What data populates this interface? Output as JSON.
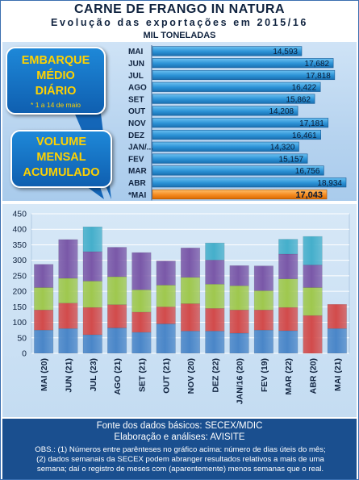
{
  "header": {
    "title": "CARNE DE FRANGO IN NATURA",
    "subtitle": "Evolução das exportações em 2015/16",
    "unit": "MIL TONELADAS"
  },
  "callouts": {
    "daily_line1": "EMBARQUE",
    "daily_line2": "MÉDIO",
    "daily_line3": "DIÁRIO",
    "daily_note": "* 1 a 14 de maio",
    "monthly_line1": "VOLUME",
    "monthly_line2": "MENSAL",
    "monthly_line3": "ACUMULADO"
  },
  "footer": {
    "source": "Fonte dos dados básicos: SECEX/MDIC",
    "analysis": "Elaboração e análises: AVISITE",
    "obs1": "OBS.: (1) Números entre parênteses no gráfico acima: número de dias úteis do mês;",
    "obs2": "(2) dados semanais da SECEX podem abranger resultados relativos a mais de uma",
    "obs3": "semana; daí o registro de meses com (aparentemente) menos semanas que o real."
  },
  "colors": {
    "daily_bar": "#2b92d6",
    "daily_bar_highlight": "#f58a1f",
    "week1": "#4a86c8",
    "week2": "#d24b4b",
    "week3": "#9fc84e",
    "week4": "#7a58a8",
    "week5": "#45afcb"
  },
  "chart_data": [
    {
      "type": "bar",
      "orientation": "horizontal",
      "title": "EMBARQUE MÉDIO DIÁRIO",
      "categories": [
        "MAI",
        "JUN",
        "JUL",
        "AGO",
        "SET",
        "OUT",
        "NOV",
        "DEZ",
        "JAN/...",
        "FEV",
        "MAR",
        "ABR",
        "*MAI"
      ],
      "values": [
        14593,
        17682,
        17818,
        16422,
        15862,
        14208,
        17181,
        16461,
        14320,
        15157,
        16756,
        18934,
        17043
      ],
      "labels": [
        "14,593",
        "17,682",
        "17,818",
        "16,422",
        "15,862",
        "14,208",
        "17,181",
        "16,461",
        "14,320",
        "15,157",
        "16,756",
        "18,934",
        "17,043"
      ],
      "highlight": "*MAI",
      "note": "* 1 a 14 de maio"
    },
    {
      "type": "bar",
      "stacked": true,
      "title": "VOLUME MENSAL ACUMULADO",
      "categories": [
        "MAI (20)",
        "JUN (21)",
        "JUL (23)",
        "AGO (21)",
        "SET (21)",
        "OUT (21)",
        "NOV (20)",
        "DEZ (22)",
        "JAN/16 (20)",
        "FEV (19)",
        "MAR (22)",
        "ABR (20)",
        "MAI (21)"
      ],
      "yticks": [
        0,
        50,
        100,
        150,
        200,
        250,
        300,
        350,
        400,
        450
      ],
      "ylim": [
        0,
        450
      ],
      "grid": true,
      "series": [
        {
          "values": [
            75,
            80,
            60,
            82,
            68,
            95,
            72,
            72,
            65,
            75,
            73,
            0,
            80
          ]
        },
        {
          "values": [
            65,
            82,
            88,
            75,
            65,
            55,
            88,
            73,
            75,
            65,
            75,
            122,
            78
          ]
        },
        {
          "values": [
            72,
            80,
            85,
            90,
            72,
            70,
            85,
            78,
            78,
            62,
            92,
            90,
            0
          ]
        },
        {
          "values": [
            75,
            125,
            95,
            95,
            120,
            78,
            95,
            78,
            65,
            80,
            80,
            73,
            0
          ]
        },
        {
          "values": [
            0,
            0,
            80,
            0,
            0,
            0,
            0,
            55,
            0,
            0,
            48,
            92,
            0
          ]
        }
      ]
    }
  ]
}
